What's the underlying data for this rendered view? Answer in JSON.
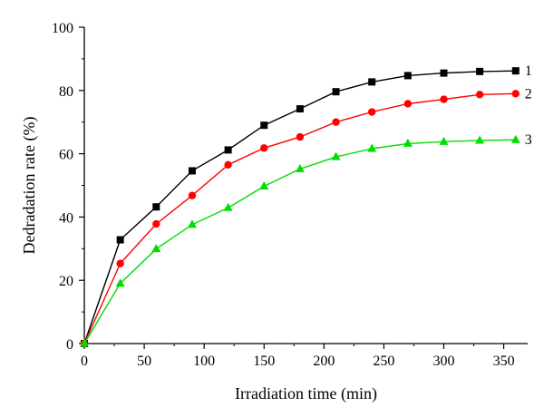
{
  "chart_data": {
    "type": "line",
    "xlabel": "Irradiation time (min)",
    "ylabel": "Dedradation rate (%)",
    "xlim": [
      0,
      370
    ],
    "ylim": [
      0,
      100
    ],
    "x_ticks": [
      0,
      50,
      100,
      150,
      200,
      250,
      300,
      350
    ],
    "y_ticks": [
      0,
      20,
      40,
      60,
      80,
      100
    ],
    "grid": false,
    "x": [
      0,
      30,
      60,
      90,
      120,
      150,
      180,
      210,
      240,
      270,
      300,
      330,
      360
    ],
    "series": [
      {
        "label": "1",
        "color": "#000000",
        "marker": "square",
        "values": [
          0,
          32.8,
          43.2,
          54.6,
          61.2,
          69,
          74.2,
          79.6,
          82.7,
          84.7,
          85.5,
          86,
          86.2
        ]
      },
      {
        "label": "2",
        "color": "#ff0000",
        "marker": "circle",
        "values": [
          0,
          25.3,
          37.8,
          46.8,
          56.5,
          61.8,
          65.3,
          70,
          73.2,
          75.8,
          77.2,
          78.7,
          79
        ]
      },
      {
        "label": "3",
        "color": "#00dd00",
        "marker": "triangle",
        "values": [
          0,
          19,
          29.9,
          37.6,
          42.9,
          49.7,
          55.2,
          59,
          61.6,
          63.2,
          63.8,
          64.2,
          64.4
        ]
      }
    ]
  }
}
